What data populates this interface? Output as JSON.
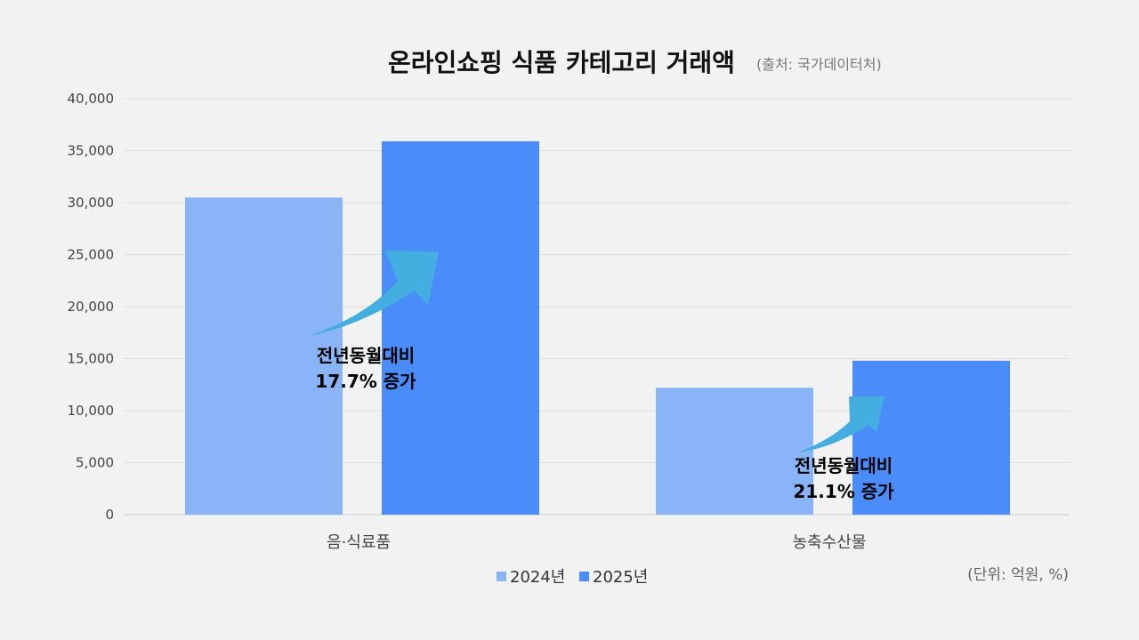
{
  "chart_data": {
    "type": "bar",
    "title": "온라인쇼핑 식품 카테고리 거래액",
    "source": "(출처: 국가데이터처)",
    "unit_note": "(단위: 억원, %)",
    "categories": [
      "음·식료품",
      "농축수산물"
    ],
    "series": [
      {
        "name": "2024년",
        "values": [
          30500,
          12200
        ],
        "color": "#8ab4f8"
      },
      {
        "name": "2025년",
        "values": [
          35900,
          14800
        ],
        "color": "#4a8cf9"
      }
    ],
    "ylim": [
      0,
      40000
    ],
    "yticks": [
      "0",
      "5,000",
      "10,000",
      "15,000",
      "20,000",
      "25,000",
      "30,000",
      "35,000",
      "40,000"
    ],
    "ytick_values": [
      0,
      5000,
      10000,
      15000,
      20000,
      25000,
      30000,
      35000,
      40000
    ],
    "grid": true,
    "legend_position": "bottom",
    "annotations": [
      {
        "line1": "전년동월대비",
        "line2": "17.7% 증가",
        "category": "음·식료품"
      },
      {
        "line1": "전년동월대비",
        "line2": "21.1% 증가",
        "category": "농축수산물"
      }
    ],
    "arrow_color": "#45aee0"
  }
}
